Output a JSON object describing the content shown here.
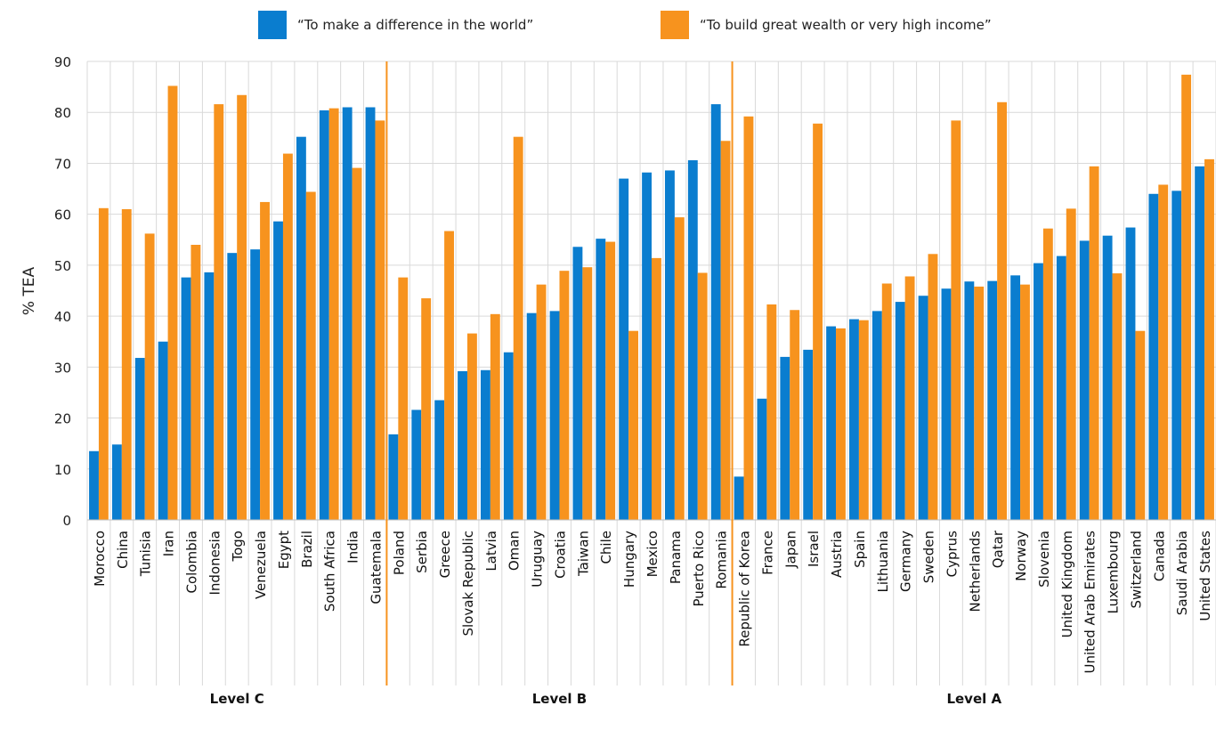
{
  "chart_data": {
    "type": "bar",
    "title": "",
    "xlabel": "",
    "ylabel": "% TEA",
    "ylim": [
      0,
      90
    ],
    "yticks": [
      0,
      10,
      20,
      30,
      40,
      50,
      60,
      70,
      80,
      90
    ],
    "grid": true,
    "legend_position": "top",
    "categories": [
      "Morocco",
      "China",
      "Tunisia",
      "Iran",
      "Colombia",
      "Indonesia",
      "Togo",
      "Venezuela",
      "Egypt",
      "Brazil",
      "South Africa",
      "India",
      "Guatemala",
      "Poland",
      "Serbia",
      "Greece",
      "Slovak Republic",
      "Latvia",
      "Oman",
      "Uruguay",
      "Croatia",
      "Taiwan",
      "Chile",
      "Hungary",
      "Mexico",
      "Panama",
      "Puerto Rico",
      "Romania",
      "Republic of Korea",
      "France",
      "Japan",
      "Israel",
      "Austria",
      "Spain",
      "Lithuania",
      "Germany",
      "Sweden",
      "Cyprus",
      "Netherlands",
      "Qatar",
      "Norway",
      "Slovenia",
      "United Kingdom",
      "United Arab Emirates",
      "Luxembourg",
      "Switzerland",
      "Canada",
      "Saudi Arabia",
      "United States"
    ],
    "series": [
      {
        "name": "“To make a difference in the world”",
        "color": "#0a7dcf",
        "values": [
          13.5,
          14.8,
          31.8,
          35.0,
          47.6,
          48.6,
          52.4,
          53.1,
          58.6,
          75.2,
          80.4,
          81.0,
          81.0,
          16.8,
          21.6,
          23.5,
          29.2,
          29.4,
          32.9,
          40.6,
          41.0,
          53.6,
          55.2,
          67.0,
          68.2,
          68.6,
          70.6,
          81.6,
          8.5,
          23.8,
          32.0,
          33.4,
          38.0,
          39.4,
          41.0,
          42.8,
          44.0,
          45.4,
          46.8,
          46.9,
          48.0,
          50.4,
          51.8,
          54.8,
          55.8,
          57.4,
          64.0,
          64.6,
          69.4
        ]
      },
      {
        "name": "“To build great wealth or very high income”",
        "color": "#f7931e",
        "values": [
          61.2,
          61.0,
          56.2,
          85.2,
          54.0,
          81.6,
          83.4,
          62.4,
          71.9,
          64.4,
          80.8,
          69.1,
          78.4,
          47.6,
          43.5,
          56.7,
          36.6,
          40.4,
          75.2,
          46.2,
          48.9,
          49.6,
          54.6,
          37.1,
          51.4,
          59.4,
          48.5,
          74.4,
          79.2,
          42.3,
          41.2,
          77.8,
          37.6,
          39.2,
          46.4,
          47.8,
          52.2,
          78.4,
          45.8,
          82.0,
          46.2,
          57.2,
          61.1,
          69.4,
          48.4,
          37.1,
          65.8,
          87.4,
          70.8
        ]
      }
    ],
    "groups": [
      {
        "label": "Level C",
        "start": 0,
        "end": 12
      },
      {
        "label": "Level B",
        "start": 13,
        "end": 27
      },
      {
        "label": "Level A",
        "start": 28,
        "end": 48
      }
    ]
  }
}
